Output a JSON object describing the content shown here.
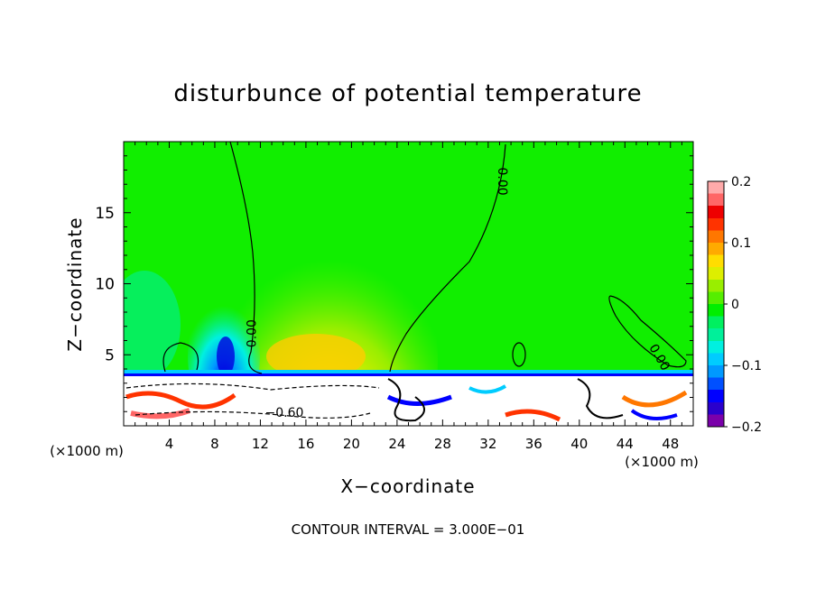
{
  "chart_data": {
    "type": "heatmap",
    "title": "disturbunce of potential temperature",
    "xlabel": "X−coordinate",
    "ylabel": "Z−coordinate",
    "x_unit_left": "(×1000 m)",
    "x_unit_right": "(×1000 m)",
    "xlim": [
      0,
      50
    ],
    "ylim": [
      0,
      20
    ],
    "x_ticks": [
      4,
      8,
      12,
      16,
      20,
      24,
      28,
      32,
      36,
      40,
      44,
      48
    ],
    "y_ticks": [
      5,
      10,
      15
    ],
    "contour_interval_text": "CONTOUR INTERVAL = 3.000E−01",
    "contour_labels": [
      {
        "text": "0.00",
        "x": 11.3,
        "y": 6.5,
        "rotate": -90
      },
      {
        "text": "0.00",
        "x": 33.2,
        "y": 17.2,
        "rotate": 90
      },
      {
        "text": "0.00",
        "x": 47.0,
        "y": 4.8,
        "rotate": 60
      },
      {
        "text": "−0.60",
        "x": 14.1,
        "y": 0.9,
        "rotate": 0
      }
    ],
    "colorbar": {
      "min": -0.2,
      "max": 0.2,
      "tick_labels": [
        "0.2",
        "0.1",
        "0",
        "−0.1",
        "−0.2"
      ],
      "tick_values": [
        0.2,
        0.1,
        0,
        -0.1,
        -0.2
      ],
      "colors": [
        "#7a00aa",
        "#2a00cc",
        "#0000ff",
        "#0050ff",
        "#0099ff",
        "#00ccff",
        "#00f0e0",
        "#00f09a",
        "#00f060",
        "#00ee00",
        "#55ee00",
        "#99ee00",
        "#ddee00",
        "#ffdd00",
        "#ffaa00",
        "#ff7700",
        "#ff3300",
        "#ee0000",
        "#ff6666",
        "#ffaaaa"
      ]
    },
    "field_regions": [
      {
        "note": "background",
        "x": [
          0,
          50
        ],
        "y": [
          0,
          20
        ],
        "value": 0.02
      },
      {
        "note": "warm plume",
        "x": [
          12,
          26
        ],
        "y": [
          3.5,
          14
        ],
        "value": 0.09
      },
      {
        "note": "cold core",
        "x": [
          7,
          11
        ],
        "y": [
          3.5,
          8
        ],
        "value": -0.15
      },
      {
        "note": "surface layer",
        "x": [
          0,
          50
        ],
        "y": [
          0,
          3.5
        ],
        "value": 0.0
      }
    ]
  }
}
